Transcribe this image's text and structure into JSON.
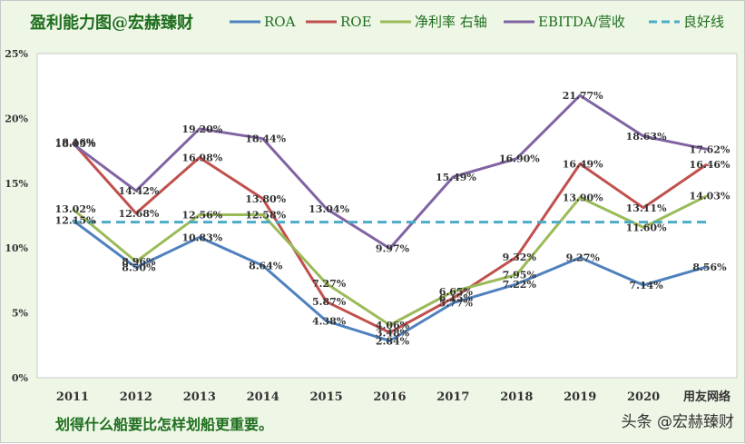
{
  "chart_data": {
    "type": "line",
    "title": "盈利能力图@宏赫臻财",
    "categories": [
      "2011",
      "2012",
      "2013",
      "2014",
      "2015",
      "2016",
      "2017",
      "2018",
      "2019",
      "2020",
      "用友网络"
    ],
    "ylim": [
      0,
      25
    ],
    "yticks": [
      "0%",
      "5%",
      "10%",
      "15%",
      "20%",
      "25%"
    ],
    "grid": false,
    "legend_position": "top",
    "series": [
      {
        "name": "ROA",
        "color": "#4f81bd",
        "values": [
          12.15,
          8.5,
          10.83,
          8.64,
          4.38,
          2.84,
          5.77,
          7.22,
          9.27,
          7.14,
          8.56
        ],
        "labels": [
          "12.15%",
          "8.50%",
          "10.83%",
          "8.64%",
          "4.38%",
          "2.84%",
          "5.77%",
          "7.22%",
          "9.27%",
          "7.14%",
          "8.56%"
        ]
      },
      {
        "name": "ROE",
        "color": "#c0504d",
        "values": [
          18.16,
          12.68,
          16.98,
          13.8,
          5.87,
          3.48,
          6.15,
          9.32,
          16.49,
          13.11,
          16.46
        ],
        "labels": [
          "18.16%",
          "12.68%",
          "16.98%",
          "13.80%",
          "5.87%",
          "3.48%",
          "6.15%",
          "9.32%",
          "16.49%",
          "13.11%",
          "16.46%"
        ]
      },
      {
        "name": "净利率 右轴",
        "color": "#9bbb59",
        "values": [
          13.02,
          8.96,
          12.56,
          12.58,
          7.27,
          4.06,
          6.65,
          7.95,
          13.9,
          11.6,
          14.03
        ],
        "labels": [
          "13.02%",
          "8.96%",
          "12.56%",
          "12.58%",
          "7.27%",
          "4.06%",
          "6.65%",
          "7.95%",
          "13.90%",
          "11.60%",
          "14.03%"
        ]
      },
      {
        "name": "EBITDA/营收",
        "color": "#8064a2",
        "values": [
          18.05,
          14.42,
          19.2,
          18.44,
          13.04,
          9.97,
          15.49,
          16.9,
          21.77,
          18.63,
          17.62
        ],
        "labels": [
          "18.05%",
          "14.42%",
          "19.20%",
          "18.44%",
          "13.04%",
          "9.97%",
          "15.49%",
          "16.90%",
          "21.77%",
          "18.63%",
          "17.62%"
        ]
      },
      {
        "name": "良好线",
        "color": "#4bacc6",
        "dashed": true,
        "values": [
          12,
          12,
          12,
          12,
          12,
          12,
          12,
          12,
          12,
          12,
          12
        ]
      }
    ],
    "annotations": [
      "划得什么船要比怎样划船更重要。"
    ]
  },
  "watermark": "头条 @宏赫臻财"
}
